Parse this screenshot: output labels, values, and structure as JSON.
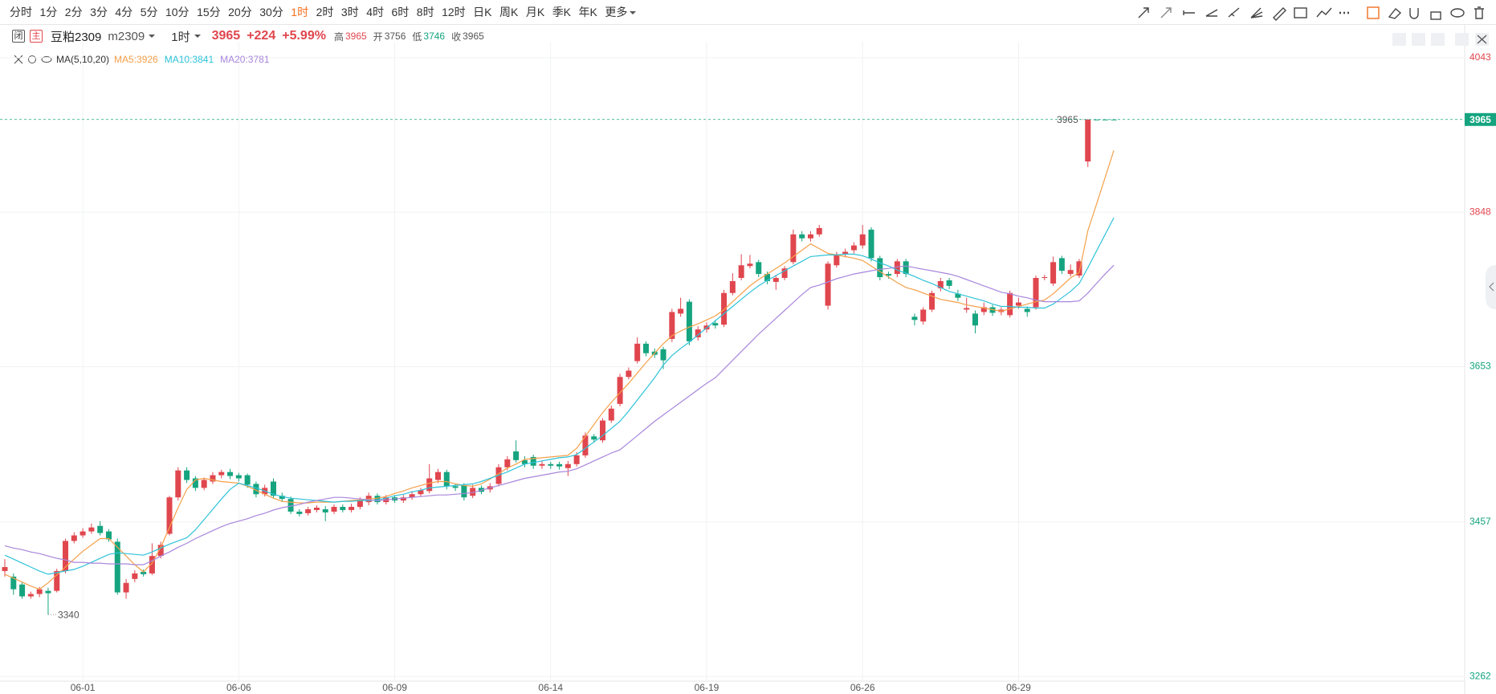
{
  "toolbar": {
    "periods": [
      "分时",
      "1分",
      "2分",
      "3分",
      "4分",
      "5分",
      "10分",
      "15分",
      "20分",
      "30分",
      "1时",
      "2时",
      "3时",
      "4时",
      "6时",
      "8时",
      "12时",
      "日K",
      "周K",
      "月K",
      "季K",
      "年K",
      "更多"
    ],
    "active": 10
  },
  "header": {
    "icons": [
      "闭",
      "主"
    ],
    "name": "豆粕2309",
    "code": "m2309",
    "period": "1时",
    "price": 3965,
    "change": {
      "value": 224,
      "label": "+224"
    },
    "change_pct": {
      "value": 5.99,
      "label": "+5.99%"
    },
    "stats": [
      {
        "label": "高",
        "value": 3965,
        "color": "#e0464e"
      },
      {
        "label": "开",
        "value": 3756,
        "color": "#555555"
      },
      {
        "label": "低",
        "value": 3746,
        "color": "#15a47f"
      },
      {
        "label": "收",
        "value": 3965,
        "color": "#555555"
      }
    ],
    "price_color": "#e0464e"
  },
  "chart_data": {
    "type": "candlestick",
    "indicator": "MA(5,10,20)",
    "categories": [
      null,
      null,
      null,
      null,
      null,
      null,
      null,
      null,
      null,
      "06-01",
      null,
      null,
      null,
      null,
      null,
      null,
      null,
      null,
      null,
      null,
      null,
      null,
      null,
      null,
      null,
      null,
      null,
      "06-06",
      null,
      null,
      null,
      null,
      null,
      null,
      null,
      null,
      null,
      null,
      null,
      null,
      null,
      null,
      null,
      null,
      null,
      "06-09",
      null,
      null,
      null,
      null,
      null,
      null,
      null,
      null,
      null,
      null,
      null,
      null,
      null,
      null,
      null,
      null,
      null,
      "06-14",
      null,
      null,
      null,
      null,
      null,
      null,
      null,
      null,
      null,
      null,
      null,
      null,
      null,
      null,
      null,
      null,
      null,
      "06-19",
      null,
      null,
      null,
      null,
      null,
      null,
      null,
      null,
      null,
      null,
      null,
      null,
      null,
      null,
      null,
      null,
      null,
      "06-26",
      null,
      null,
      null,
      null,
      null,
      null,
      null,
      null,
      null,
      null,
      null,
      null,
      null,
      null,
      null,
      null,
      null,
      "06-29",
      null,
      null,
      null,
      null,
      null,
      null,
      null,
      null,
      null,
      null,
      null
    ],
    "open": [
      3395,
      3388,
      3378,
      3363,
      3366,
      3370,
      3370,
      3395,
      3433,
      3440,
      3445,
      3452,
      3445,
      3432,
      3368,
      3385,
      3394,
      3392,
      3414,
      3442,
      3488,
      3522,
      3512,
      3500,
      3508,
      3516,
      3520,
      3516,
      3516,
      3505,
      3492,
      3508,
      3490,
      3486,
      3470,
      3468,
      3472,
      3473,
      3470,
      3476,
      3472,
      3476,
      3482,
      3490,
      3482,
      3488,
      3484,
      3488,
      3492,
      3496,
      3510,
      3520,
      3502,
      3503,
      3490,
      3500,
      3498,
      3505,
      3526,
      3546,
      3535,
      3539,
      3528,
      3530,
      3530,
      3525,
      3530,
      3541,
      3565,
      3560,
      3585,
      3606,
      3640,
      3660,
      3682,
      3672,
      3675,
      3688,
      3720,
      3735,
      3690,
      3700,
      3708,
      3706,
      3746,
      3765,
      3780,
      3785,
      3770,
      3760,
      3765,
      3785,
      3820,
      3815,
      3820,
      3730,
      3781,
      3795,
      3800,
      3806,
      3826,
      3790,
      3770,
      3770,
      3786,
      3716,
      3710,
      3725,
      3752,
      3762,
      3745,
      3725,
      3720,
      3722,
      3728,
      3722,
      3718,
      3730,
      3726,
      3728,
      3765,
      3758,
      3790,
      3770,
      3768,
      3912,
      3965,
      3965,
      3965
    ],
    "high": [
      3410,
      3392,
      3381,
      3369,
      3375,
      3374,
      3398,
      3436,
      3444,
      3449,
      3455,
      3458,
      3448,
      3436,
      3385,
      3396,
      3397,
      3430,
      3432,
      3490,
      3526,
      3526,
      3515,
      3513,
      3520,
      3523,
      3524,
      3519,
      3518,
      3508,
      3504,
      3512,
      3494,
      3489,
      3473,
      3476,
      3478,
      3477,
      3479,
      3479,
      3480,
      3488,
      3494,
      3493,
      3491,
      3491,
      3491,
      3496,
      3500,
      3530,
      3524,
      3523,
      3505,
      3506,
      3504,
      3503,
      3506,
      3530,
      3540,
      3560,
      3540,
      3542,
      3534,
      3533,
      3533,
      3534,
      3545,
      3570,
      3568,
      3588,
      3604,
      3644,
      3652,
      3690,
      3685,
      3676,
      3678,
      3726,
      3740,
      3738,
      3704,
      3709,
      3712,
      3750,
      3771,
      3795,
      3794,
      3788,
      3773,
      3769,
      3780,
      3826,
      3824,
      3824,
      3832,
      3786,
      3798,
      3802,
      3810,
      3832,
      3829,
      3793,
      3773,
      3789,
      3789,
      3720,
      3728,
      3749,
      3765,
      3765,
      3750,
      3740,
      3724,
      3734,
      3731,
      3728,
      3749,
      3740,
      3729,
      3768,
      3769,
      3792,
      3793,
      3782,
      3789,
      3965,
      3965,
      3965,
      3965
    ],
    "low": [
      3388,
      3365,
      3360,
      3360,
      3362,
      3340,
      3368,
      3392,
      3430,
      3437,
      3442,
      3440,
      3432,
      3365,
      3360,
      3381,
      3388,
      3390,
      3411,
      3440,
      3484,
      3506,
      3496,
      3497,
      3505,
      3512,
      3511,
      3508,
      3500,
      3488,
      3489,
      3487,
      3482,
      3467,
      3464,
      3465,
      3469,
      3458,
      3467,
      3469,
      3469,
      3473,
      3478,
      3479,
      3479,
      3481,
      3481,
      3485,
      3489,
      3493,
      3506,
      3498,
      3496,
      3484,
      3487,
      3492,
      3494,
      3502,
      3522,
      3532,
      3526,
      3524,
      3524,
      3524,
      3523,
      3515,
      3527,
      3538,
      3557,
      3557,
      3582,
      3603,
      3637,
      3657,
      3666,
      3664,
      3650,
      3684,
      3716,
      3680,
      3686,
      3696,
      3701,
      3703,
      3743,
      3762,
      3777,
      3766,
      3757,
      3750,
      3762,
      3782,
      3811,
      3811,
      3817,
      3725,
      3778,
      3791,
      3796,
      3802,
      3786,
      3762,
      3764,
      3766,
      3766,
      3705,
      3706,
      3722,
      3748,
      3751,
      3736,
      3721,
      3695,
      3718,
      3717,
      3718,
      3715,
      3726,
      3716,
      3725,
      3762,
      3755,
      3770,
      3767,
      3765,
      3905,
      3965,
      3965,
      3965
    ],
    "close": [
      3400,
      3372,
      3363,
      3366,
      3372,
      3367,
      3395,
      3433,
      3440,
      3445,
      3450,
      3443,
      3435,
      3368,
      3380,
      3392,
      3391,
      3414,
      3428,
      3488,
      3522,
      3510,
      3500,
      3510,
      3516,
      3520,
      3515,
      3512,
      3504,
      3492,
      3500,
      3490,
      3486,
      3470,
      3467,
      3473,
      3475,
      3469,
      3476,
      3472,
      3476,
      3485,
      3490,
      3482,
      3488,
      3484,
      3488,
      3492,
      3497,
      3512,
      3520,
      3502,
      3500,
      3488,
      3500,
      3495,
      3502,
      3526,
      3536,
      3535,
      3530,
      3528,
      3530,
      3528,
      3527,
      3530,
      3541,
      3566,
      3561,
      3585,
      3600,
      3640,
      3648,
      3682,
      3670,
      3668,
      3661,
      3722,
      3726,
      3685,
      3700,
      3705,
      3705,
      3746,
      3761,
      3781,
      3783,
      3770,
      3761,
      3765,
      3777,
      3820,
      3815,
      3820,
      3828,
      3783,
      3795,
      3798,
      3806,
      3820,
      3790,
      3766,
      3768,
      3786,
      3770,
      3712,
      3725,
      3746,
      3761,
      3755,
      3740,
      3727,
      3705,
      3728,
      3721,
      3725,
      3746,
      3734,
      3722,
      3765,
      3766,
      3785,
      3774,
      3775,
      3786,
      3965,
      3965,
      3965,
      3965
    ],
    "up_color": "#e0464e",
    "down_color": "#15a47f",
    "series": [
      {
        "name": "MA5:3926",
        "color": "#f5a04a",
        "values": [
          3391,
          3386,
          3381,
          3376,
          3372,
          3380,
          3390,
          3400,
          3410,
          3420,
          3428,
          3436,
          3436,
          3425,
          3414,
          3403,
          3394,
          3405,
          3425,
          3450,
          3475,
          3498,
          3510,
          3512,
          3510,
          3508,
          3507,
          3506,
          3502,
          3497,
          3492,
          3487,
          3483,
          3482,
          3481,
          3481,
          3482,
          3482,
          3482,
          3483,
          3484,
          3485,
          3486,
          3487,
          3489,
          3493,
          3496,
          3500,
          3503,
          3506,
          3508,
          3508,
          3505,
          3503,
          3502,
          3505,
          3511,
          3518,
          3525,
          3530,
          3536,
          3537,
          3538,
          3539,
          3540,
          3541,
          3550,
          3565,
          3580,
          3595,
          3608,
          3620,
          3632,
          3645,
          3658,
          3670,
          3682,
          3692,
          3698,
          3703,
          3707,
          3712,
          3717,
          3725,
          3735,
          3745,
          3755,
          3763,
          3770,
          3777,
          3784,
          3792,
          3800,
          3808,
          3802,
          3796,
          3794,
          3792,
          3790,
          3787,
          3780,
          3773,
          3766,
          3759,
          3753,
          3750,
          3746,
          3742,
          3738,
          3736,
          3734,
          3731,
          3729,
          3727,
          3725,
          3723,
          3726,
          3729,
          3732,
          3735,
          3737,
          3745,
          3755,
          3765,
          3772,
          3825,
          3858,
          3892,
          3926
        ]
      },
      {
        "name": "MA10:3841",
        "color": "#2ec3d9",
        "values": [
          3415,
          3410,
          3405,
          3400,
          3395,
          3391,
          3393,
          3395,
          3397,
          3401,
          3406,
          3411,
          3416,
          3418,
          3417,
          3416,
          3415,
          3419,
          3424,
          3429,
          3433,
          3437,
          3447,
          3460,
          3473,
          3486,
          3498,
          3506,
          3503,
          3500,
          3496,
          3492,
          3489,
          3487,
          3486,
          3485,
          3484,
          3483,
          3482,
          3483,
          3483,
          3484,
          3484,
          3485,
          3487,
          3490,
          3492,
          3495,
          3497,
          3500,
          3501,
          3502,
          3503,
          3504,
          3505,
          3508,
          3512,
          3516,
          3520,
          3525,
          3530,
          3532,
          3534,
          3536,
          3538,
          3539,
          3542,
          3550,
          3558,
          3566,
          3575,
          3584,
          3597,
          3611,
          3625,
          3639,
          3655,
          3667,
          3676,
          3684,
          3693,
          3702,
          3711,
          3720,
          3729,
          3738,
          3747,
          3755,
          3762,
          3768,
          3774,
          3780,
          3786,
          3792,
          3793,
          3794,
          3794,
          3795,
          3795,
          3793,
          3789,
          3784,
          3780,
          3775,
          3771,
          3767,
          3762,
          3758,
          3753,
          3748,
          3745,
          3742,
          3739,
          3736,
          3732,
          3729,
          3729,
          3728,
          3728,
          3727,
          3727,
          3732,
          3740,
          3748,
          3758,
          3778,
          3799,
          3820,
          3841
        ]
      },
      {
        "name": "MA20:3781",
        "color": "#a886dc",
        "values": [
          3427,
          3424,
          3422,
          3419,
          3417,
          3414,
          3411,
          3409,
          3406,
          3406,
          3405,
          3405,
          3404,
          3404,
          3404,
          3403,
          3403,
          3408,
          3414,
          3419,
          3425,
          3430,
          3436,
          3441,
          3446,
          3451,
          3455,
          3458,
          3461,
          3465,
          3468,
          3472,
          3475,
          3477,
          3479,
          3482,
          3484,
          3486,
          3488,
          3488,
          3487,
          3486,
          3485,
          3484,
          3485,
          3486,
          3487,
          3488,
          3489,
          3490,
          3491,
          3491,
          3492,
          3493,
          3494,
          3497,
          3500,
          3503,
          3506,
          3509,
          3512,
          3514,
          3516,
          3518,
          3520,
          3521,
          3524,
          3529,
          3534,
          3539,
          3544,
          3548,
          3557,
          3566,
          3575,
          3584,
          3592,
          3600,
          3608,
          3616,
          3624,
          3632,
          3639,
          3650,
          3661,
          3672,
          3683,
          3694,
          3704,
          3714,
          3724,
          3734,
          3744,
          3753,
          3756,
          3760,
          3764,
          3767,
          3770,
          3772,
          3774,
          3776,
          3777,
          3779,
          3780,
          3778,
          3776,
          3774,
          3772,
          3770,
          3767,
          3763,
          3759,
          3755,
          3751,
          3747,
          3745,
          3742,
          3740,
          3737,
          3735,
          3735,
          3735,
          3735,
          3736,
          3746,
          3758,
          3770,
          3781
        ]
      }
    ],
    "ylim": [
      3256,
      4053
    ],
    "yticks": [
      3262,
      3457,
      3653,
      3848,
      4043
    ],
    "ytick_colors": [
      "#15a47f",
      "#15a47f",
      "#15a47f",
      "#e0464e",
      "#e0464e"
    ],
    "grid": true,
    "last_price": 3965,
    "last_price_color": "#15a47f"
  }
}
